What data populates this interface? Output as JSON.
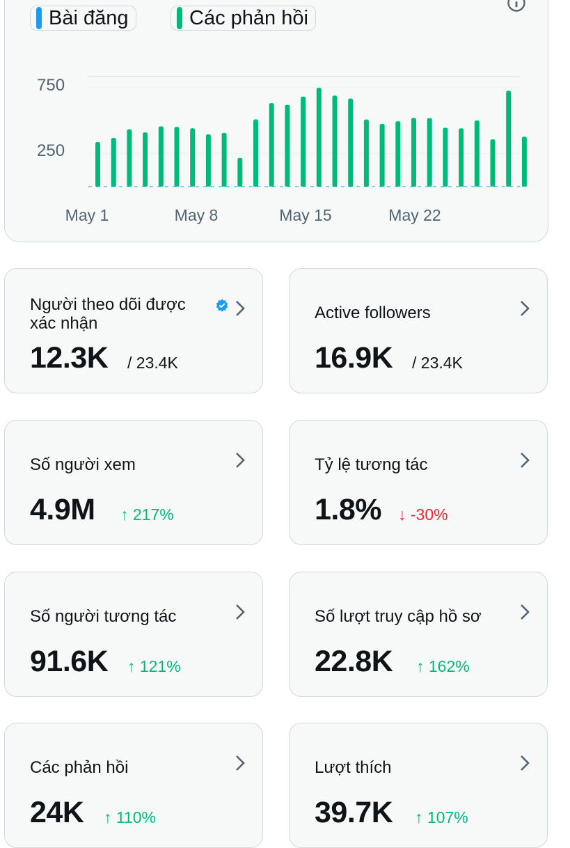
{
  "legend": {
    "posts_label": "Bài đăng",
    "replies_label": "Các phản hồi",
    "posts_color": "#1d9bf0",
    "replies_color": "#00ba7c"
  },
  "icons": {
    "info": "info-icon",
    "chevron": "chevron-right-icon",
    "verified": "verified-badge-icon"
  },
  "chart_data": {
    "type": "bar",
    "x_tick_labels": [
      "May 1",
      "May 8",
      "May 15",
      "May 22"
    ],
    "y_tick_labels": [
      "250",
      "750"
    ],
    "y_ticks": [
      250,
      750
    ],
    "ylim": [
      0,
      760
    ],
    "categories": [
      "May 1",
      "May 2",
      "May 3",
      "May 4",
      "May 5",
      "May 6",
      "May 7",
      "May 8",
      "May 9",
      "May 10",
      "May 11",
      "May 12",
      "May 13",
      "May 14",
      "May 15",
      "May 16",
      "May 17",
      "May 18",
      "May 19",
      "May 20",
      "May 21",
      "May 22",
      "May 23",
      "May 24",
      "May 25",
      "May 26",
      "May 27",
      "May 28"
    ],
    "series": [
      {
        "name": "Bài đăng",
        "color": "#1d9bf0",
        "values": [
          8,
          6,
          5,
          7,
          6,
          5,
          6,
          8,
          6,
          4,
          7,
          6,
          8,
          5,
          6,
          7,
          6,
          5,
          7,
          6,
          6,
          8,
          5,
          6,
          7,
          5,
          6,
          8
        ]
      },
      {
        "name": "Các phản hồi",
        "color": "#00ba7c",
        "values": [
          337,
          368,
          433,
          410,
          455,
          451,
          441,
          395,
          406,
          217,
          508,
          631,
          618,
          680,
          747,
          688,
          666,
          507,
          474,
          494,
          519,
          518,
          445,
          440,
          500,
          357,
          725,
          377
        ]
      }
    ],
    "grid": true,
    "legend_position": "top-left"
  },
  "stats": [
    {
      "title": "Người theo dõi được xác nhận",
      "value": "12.3K",
      "sub": "/ 23.4K",
      "sub_kind": "total",
      "verified": true
    },
    {
      "title": "Active followers",
      "value": "16.9K",
      "sub": "/ 23.4K",
      "sub_kind": "total"
    },
    {
      "title": "Số người xem",
      "value": "4.9M",
      "sub": "↑ 217%",
      "sub_kind": "up"
    },
    {
      "title": "Tỷ lệ tương tác",
      "value": "1.8%",
      "sub": "↓ -30%",
      "sub_kind": "down"
    },
    {
      "title": "Số người tương tác",
      "value": "91.6K",
      "sub": "↑ 121%",
      "sub_kind": "up"
    },
    {
      "title": "Số lượt truy cập hồ sơ",
      "value": "22.8K",
      "sub": "↑ 162%",
      "sub_kind": "up"
    },
    {
      "title": "Các phản hồi",
      "value": "24K",
      "sub": "↑ 110%",
      "sub_kind": "up"
    },
    {
      "title": "Lượt thích",
      "value": "39.7K",
      "sub": "↑ 107%",
      "sub_kind": "up"
    }
  ]
}
